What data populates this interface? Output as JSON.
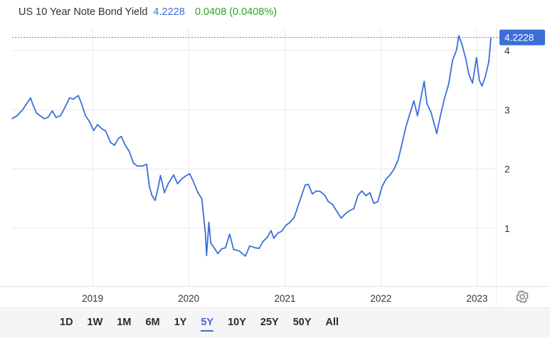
{
  "header": {
    "name": "US 10 Year Note Bond Yield",
    "price": "4.2228",
    "change": "0.0408 (0.0408%)"
  },
  "colors": {
    "line": "#3b6fd8",
    "change_positive": "#29a329",
    "grid": "#e9e9e9",
    "label_bg": "#3b6fd8"
  },
  "settings_icon": "gear-icon",
  "ranges": {
    "items": [
      "1D",
      "1W",
      "1M",
      "6M",
      "1Y",
      "5Y",
      "10Y",
      "25Y",
      "50Y",
      "All"
    ],
    "active": "5Y"
  },
  "chart_data": {
    "type": "line",
    "title": "US 10 Year Note Bond Yield",
    "xlabel": "",
    "ylabel": "",
    "x_axis": "date",
    "x_ticks": [
      "2019",
      "2020",
      "2021",
      "2022",
      "2023"
    ],
    "y_ticks": [
      1,
      2,
      3,
      4
    ],
    "ylim": [
      0,
      4.4
    ],
    "grid": true,
    "last_value_label": "4.2228",
    "series": [
      {
        "x": [
          "2018-03-01",
          "2018-03-20",
          "2018-04-10",
          "2018-04-25",
          "2018-05-10",
          "2018-05-17",
          "2018-06-01",
          "2018-06-15",
          "2018-07-01",
          "2018-07-15",
          "2018-08-01",
          "2018-08-15",
          "2018-09-01",
          "2018-09-20",
          "2018-10-05",
          "2018-10-20",
          "2018-11-08",
          "2018-11-20",
          "2018-12-05",
          "2018-12-20",
          "2019-01-05",
          "2019-01-20",
          "2019-02-05",
          "2019-02-20",
          "2019-03-10",
          "2019-03-25",
          "2019-04-10",
          "2019-04-20",
          "2019-05-05",
          "2019-05-20",
          "2019-06-05",
          "2019-06-20",
          "2019-07-10",
          "2019-07-25",
          "2019-08-05",
          "2019-08-15",
          "2019-08-27",
          "2019-09-10",
          "2019-09-16",
          "2019-10-01",
          "2019-10-15",
          "2019-11-05",
          "2019-11-20",
          "2019-12-05",
          "2019-12-20",
          "2020-01-05",
          "2020-01-20",
          "2020-02-05",
          "2020-02-20",
          "2020-03-05",
          "2020-03-09",
          "2020-03-18",
          "2020-03-25",
          "2020-04-10",
          "2020-04-21",
          "2020-05-05",
          "2020-05-20",
          "2020-06-05",
          "2020-06-20",
          "2020-07-10",
          "2020-08-04",
          "2020-08-20",
          "2020-09-10",
          "2020-09-25",
          "2020-10-10",
          "2020-10-25",
          "2020-11-09",
          "2020-11-20",
          "2020-12-05",
          "2020-12-20",
          "2021-01-05",
          "2021-01-20",
          "2021-02-05",
          "2021-02-20",
          "2021-03-05",
          "2021-03-19",
          "2021-03-31",
          "2021-04-15",
          "2021-05-01",
          "2021-05-15",
          "2021-06-01",
          "2021-06-15",
          "2021-07-01",
          "2021-07-15",
          "2021-08-03",
          "2021-08-20",
          "2021-09-05",
          "2021-09-20",
          "2021-10-05",
          "2021-10-20",
          "2021-11-05",
          "2021-11-20",
          "2021-12-05",
          "2021-12-20",
          "2022-01-05",
          "2022-01-20",
          "2022-02-05",
          "2022-02-20",
          "2022-03-07",
          "2022-03-20",
          "2022-04-05",
          "2022-04-20",
          "2022-05-06",
          "2022-05-20",
          "2022-06-14",
          "2022-06-25",
          "2022-07-10",
          "2022-07-20",
          "2022-08-01",
          "2022-08-15",
          "2022-08-31",
          "2022-09-15",
          "2022-09-30",
          "2022-10-15",
          "2022-10-24",
          "2022-11-05",
          "2022-11-20",
          "2022-12-01",
          "2022-12-15",
          "2022-12-30",
          "2023-01-10",
          "2023-01-20",
          "2023-02-01",
          "2023-02-15",
          "2023-02-23"
        ],
        "y": [
          2.85,
          2.9,
          3.0,
          3.1,
          3.2,
          3.11,
          2.95,
          2.9,
          2.85,
          2.87,
          2.98,
          2.87,
          2.9,
          3.06,
          3.2,
          3.18,
          3.24,
          3.1,
          2.9,
          2.8,
          2.65,
          2.75,
          2.68,
          2.64,
          2.45,
          2.4,
          2.52,
          2.55,
          2.4,
          2.3,
          2.1,
          2.05,
          2.05,
          2.08,
          1.7,
          1.55,
          1.47,
          1.75,
          1.89,
          1.6,
          1.75,
          1.9,
          1.75,
          1.83,
          1.88,
          1.92,
          1.78,
          1.6,
          1.5,
          0.9,
          0.54,
          1.1,
          0.75,
          0.65,
          0.57,
          0.65,
          0.67,
          0.9,
          0.64,
          0.62,
          0.53,
          0.7,
          0.67,
          0.66,
          0.78,
          0.84,
          0.96,
          0.83,
          0.92,
          0.95,
          1.05,
          1.1,
          1.18,
          1.38,
          1.55,
          1.73,
          1.74,
          1.58,
          1.63,
          1.62,
          1.56,
          1.45,
          1.4,
          1.3,
          1.17,
          1.25,
          1.3,
          1.33,
          1.55,
          1.63,
          1.55,
          1.6,
          1.42,
          1.45,
          1.7,
          1.83,
          1.9,
          2.0,
          2.15,
          2.39,
          2.7,
          2.92,
          3.15,
          2.9,
          3.48,
          3.1,
          2.96,
          2.8,
          2.6,
          2.9,
          3.2,
          3.43,
          3.83,
          4.01,
          4.25,
          4.1,
          3.85,
          3.6,
          3.45,
          3.88,
          3.5,
          3.4,
          3.55,
          3.81,
          4.22
        ]
      }
    ]
  }
}
